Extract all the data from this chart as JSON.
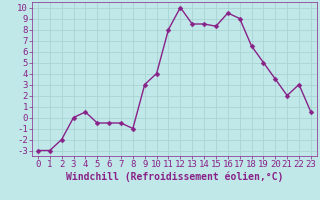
{
  "x": [
    0,
    1,
    2,
    3,
    4,
    5,
    6,
    7,
    8,
    9,
    10,
    11,
    12,
    13,
    14,
    15,
    16,
    17,
    18,
    19,
    20,
    21,
    22,
    23
  ],
  "y": [
    -3,
    -3,
    -2,
    0,
    0.5,
    -0.5,
    -0.5,
    -0.5,
    -1,
    3,
    4,
    8,
    10,
    8.5,
    8.5,
    8.3,
    9.5,
    9,
    6.5,
    5,
    3.5,
    2,
    3,
    0.5
  ],
  "line_color": "#882288",
  "marker_color": "#882288",
  "bg_color": "#c0e8e8",
  "grid_color": "#aad4d4",
  "xlabel": "Windchill (Refroidissement éolien,°C)",
  "xlim": [
    -0.5,
    23.5
  ],
  "ylim": [
    -3.5,
    10.5
  ],
  "yticks": [
    -3,
    -2,
    -1,
    0,
    1,
    2,
    3,
    4,
    5,
    6,
    7,
    8,
    9,
    10
  ],
  "xticks": [
    0,
    1,
    2,
    3,
    4,
    5,
    6,
    7,
    8,
    9,
    10,
    11,
    12,
    13,
    14,
    15,
    16,
    17,
    18,
    19,
    20,
    21,
    22,
    23
  ],
  "tick_label_color": "#882288",
  "axis_label_color": "#882288",
  "font_size_xlabel": 7.0,
  "font_size_ticks": 6.5,
  "line_width": 1.0,
  "marker_size": 2.5,
  "spine_color": "#882288"
}
